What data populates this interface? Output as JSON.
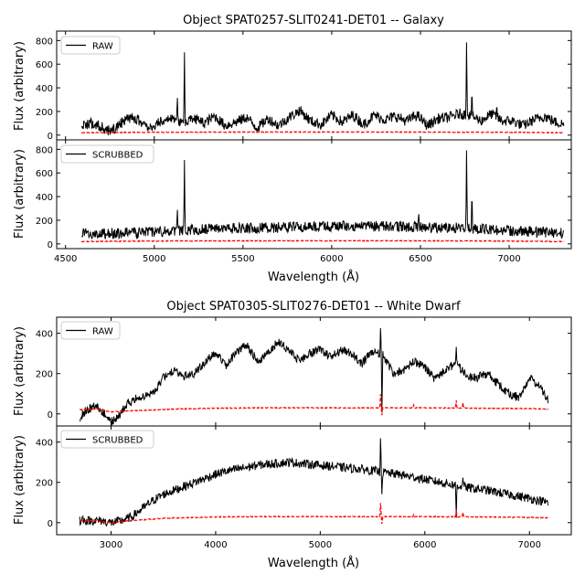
{
  "chart_data": [
    {
      "type": "line",
      "title": "Object SPAT0257-SLIT0241-DET01 -- Galaxy",
      "xlabel": "Wavelength (Å)",
      "xlim": [
        4450,
        7350
      ],
      "xticks": [
        4500,
        5000,
        5500,
        6000,
        6500,
        7000
      ],
      "panels": [
        {
          "ylabel": "Flux (arbitrary)",
          "ylim": [
            -40,
            880
          ],
          "yticks": [
            0,
            200,
            400,
            600,
            800
          ],
          "legend": "top-left",
          "series": [
            {
              "name": "RAW",
              "color": "#000000",
              "style": "solid",
              "noise": 45,
              "x": [
                4590,
                4650,
                4700,
                4740,
                4780,
                4820,
                4870,
                4920,
                4980,
                5040,
                5100,
                5160,
                5220,
                5280,
                5340,
                5400,
                5460,
                5520,
                5580,
                5640,
                5700,
                5760,
                5820,
                5880,
                5940,
                6000,
                6060,
                6120,
                6180,
                6240,
                6300,
                6360,
                6420,
                6480,
                6540,
                6600,
                6660,
                6720,
                6780,
                6840,
                6900,
                6960,
                7020,
                7080,
                7140,
                7200,
                7260,
                7310
              ],
              "y": [
                90,
                100,
                70,
                40,
                60,
                110,
                150,
                120,
                60,
                120,
                150,
                90,
                150,
                100,
                160,
                80,
                110,
                150,
                60,
                140,
                80,
                150,
                210,
                120,
                90,
                170,
                110,
                170,
                90,
                170,
                130,
                160,
                120,
                170,
                80,
                140,
                150,
                180,
                170,
                120,
                180,
                120,
                120,
                80,
                130,
                160,
                110,
                90
              ],
              "peaks": [
                [
                  5130,
                  340
                ],
                [
                  5170,
                  700
                ],
                [
                  6760,
                  830
                ],
                [
                  6790,
                  400
                ],
                [
                  6930,
                  270
                ]
              ]
            },
            {
              "name": "",
              "color": "#ff0000",
              "style": "dashed",
              "noise": 3,
              "x": [
                4590,
                5000,
                5500,
                6000,
                6500,
                7000,
                7310
              ],
              "y": [
                20,
                24,
                26,
                26,
                26,
                24,
                20
              ],
              "peaks": []
            }
          ]
        },
        {
          "ylabel": "Flux (arbitrary)",
          "ylim": [
            -40,
            880
          ],
          "yticks": [
            0,
            200,
            400,
            600,
            800
          ],
          "legend": "top-left",
          "series": [
            {
              "name": "SCRUBBED",
              "color": "#000000",
              "style": "solid",
              "noise": 45,
              "x": [
                4590,
                4800,
                5000,
                5200,
                5400,
                5600,
                5800,
                6000,
                6200,
                6400,
                6600,
                6800,
                7000,
                7200,
                7310
              ],
              "y": [
                90,
                90,
                100,
                120,
                130,
                135,
                145,
                150,
                150,
                145,
                140,
                130,
                110,
                100,
                90
              ],
              "peaks": [
                [
                  5130,
                  310
                ],
                [
                  5170,
                  710
                ],
                [
                  6490,
                  280
                ],
                [
                  6760,
                  840
                ],
                [
                  6790,
                  470
                ]
              ]
            },
            {
              "name": "",
              "color": "#ff0000",
              "style": "dashed",
              "noise": 3,
              "x": [
                4590,
                5000,
                5500,
                6000,
                6500,
                7000,
                7310
              ],
              "y": [
                20,
                24,
                26,
                26,
                26,
                24,
                20
              ],
              "peaks": []
            }
          ]
        }
      ]
    },
    {
      "type": "line",
      "title": "Object SPAT0305-SLIT0276-DET01 -- White Dwarf",
      "xlabel": "Wavelength (Å)",
      "xlim": [
        2480,
        7400
      ],
      "xticks": [
        3000,
        4000,
        5000,
        6000,
        7000
      ],
      "panels": [
        {
          "ylabel": "Flux (arbitrary)",
          "ylim": [
            -60,
            480
          ],
          "yticks": [
            0,
            200,
            400
          ],
          "legend": "top-left",
          "series": [
            {
              "name": "RAW",
              "color": "#000000",
              "style": "solid",
              "noise": 22,
              "x": [
                2700,
                2760,
                2850,
                2940,
                3000,
                3060,
                3150,
                3300,
                3400,
                3500,
                3600,
                3700,
                3800,
                3900,
                4000,
                4100,
                4200,
                4300,
                4400,
                4500,
                4600,
                4700,
                4800,
                4900,
                5000,
                5100,
                5200,
                5300,
                5400,
                5500,
                5600,
                5700,
                5800,
                5900,
                6000,
                6100,
                6200,
                6300,
                6400,
                6500,
                6600,
                6700,
                6800,
                6900,
                7000,
                7100,
                7180
              ],
              "y": [
                -20,
                20,
                40,
                0,
                -40,
                -20,
                50,
                90,
                100,
                180,
                220,
                190,
                200,
                260,
                300,
                240,
                310,
                340,
                260,
                300,
                360,
                320,
                260,
                300,
                320,
                280,
                320,
                300,
                250,
                310,
                290,
                200,
                220,
                260,
                230,
                170,
                220,
                250,
                190,
                180,
                200,
                150,
                100,
                80,
                180,
                140,
                60
              ],
              "peaks": [
                [
                  5577,
                  450
                ],
                [
                  5590,
                  -20
                ],
                [
                  6300,
                  340
                ]
              ]
            },
            {
              "name": "",
              "color": "#ff0000",
              "style": "dashed",
              "noise": 2,
              "x": [
                2700,
                2850,
                3000,
                3200,
                3500,
                4000,
                4500,
                5000,
                5500,
                6000,
                6500,
                7000,
                7180
              ],
              "y": [
                20,
                25,
                10,
                15,
                22,
                28,
                30,
                30,
                30,
                30,
                28,
                26,
                24
              ],
              "peaks": [
                [
                  5577,
                  110
                ],
                [
                  5590,
                  -10
                ],
                [
                  6300,
                  70
                ],
                [
                  6364,
                  60
                ],
                [
                  5893,
                  45
                ]
              ]
            }
          ]
        },
        {
          "ylabel": "Flux (arbitrary)",
          "ylim": [
            -60,
            480
          ],
          "yticks": [
            0,
            200,
            400
          ],
          "legend": "top-left",
          "series": [
            {
              "name": "SCRUBBED",
              "color": "#000000",
              "style": "solid",
              "noise": 22,
              "x": [
                2700,
                2900,
                3000,
                3100,
                3200,
                3300,
                3400,
                3500,
                3600,
                3700,
                3800,
                3900,
                4000,
                4100,
                4200,
                4300,
                4400,
                4500,
                4600,
                4700,
                4800,
                4900,
                5000,
                5200,
                5400,
                5600,
                5800,
                6000,
                6200,
                6400,
                6600,
                6800,
                7000,
                7180
              ],
              "y": [
                10,
                10,
                0,
                10,
                30,
                70,
                110,
                140,
                160,
                180,
                200,
                220,
                240,
                255,
                265,
                275,
                285,
                290,
                295,
                300,
                295,
                290,
                285,
                275,
                265,
                250,
                235,
                215,
                195,
                175,
                160,
                140,
                120,
                100
              ],
              "peaks": [
                [
                  5577,
                  450
                ],
                [
                  5590,
                  130
                ],
                [
                  6300,
                  10
                ],
                [
                  6364,
                  230
                ]
              ]
            },
            {
              "name": "",
              "color": "#ff0000",
              "style": "dashed",
              "noise": 2,
              "x": [
                2700,
                2850,
                3000,
                3200,
                3500,
                4000,
                4500,
                5000,
                5500,
                6000,
                6500,
                7000,
                7180
              ],
              "y": [
                10,
                10,
                0,
                10,
                22,
                28,
                30,
                30,
                30,
                30,
                28,
                26,
                24
              ],
              "peaks": [
                [
                  5577,
                  110
                ],
                [
                  5590,
                  -10
                ],
                [
                  6300,
                  70
                ],
                [
                  6364,
                  55
                ],
                [
                  5893,
                  40
                ]
              ]
            }
          ]
        }
      ]
    }
  ]
}
